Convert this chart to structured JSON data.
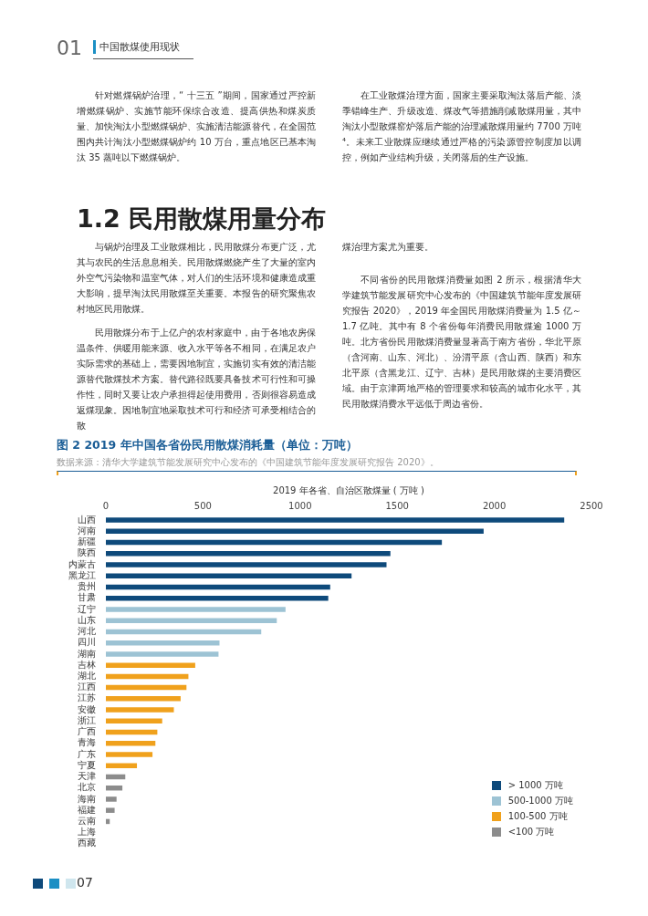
{
  "chart_data": {
    "type": "bar",
    "orientation": "horizontal",
    "title": "图 2  2019 年中国各省份民用散煤消耗量（单位：万吨）",
    "subtitle": "数据来源：清华大学建筑节能发展研究中心发布的《中国建筑节能年度发展研究报告 2020》。",
    "xlabel": "2019 年各省、自治区散煤量 ( 万吨 )",
    "categories": [
      "山西",
      "河南",
      "新疆",
      "陕西",
      "内蒙古",
      "黑龙江",
      "贵州",
      "甘肃",
      "辽宁",
      "山东",
      "河北",
      "四川",
      "湖南",
      "吉林",
      "湖北",
      "江西",
      "江苏",
      "安徽",
      "浙江",
      "广西",
      "青海",
      "广东",
      "宁夏",
      "天津",
      "北京",
      "海南",
      "福建",
      "云南",
      "上海",
      "西藏"
    ],
    "series": [
      {
        "name": "> 1000 万吨",
        "color": "#0e4a7b",
        "values": [
          2360,
          1945,
          1730,
          1465,
          1445,
          1265,
          1155,
          1145,
          null,
          null,
          null,
          null,
          null,
          null,
          null,
          null,
          null,
          null,
          null,
          null,
          null,
          null,
          null,
          null,
          null,
          null,
          null,
          null,
          null,
          null
        ]
      },
      {
        "name": "500-1000 万吨",
        "color": "#9dc3d4",
        "values": [
          null,
          null,
          null,
          null,
          null,
          null,
          null,
          null,
          925,
          880,
          800,
          585,
          580,
          null,
          null,
          null,
          null,
          null,
          null,
          null,
          null,
          null,
          null,
          null,
          null,
          null,
          null,
          null,
          null,
          null
        ]
      },
      {
        "name": "100-500 万吨",
        "color": "#f0a11c",
        "values": [
          null,
          null,
          null,
          null,
          null,
          null,
          null,
          null,
          null,
          null,
          null,
          null,
          null,
          460,
          425,
          415,
          385,
          350,
          290,
          265,
          255,
          240,
          160,
          null,
          null,
          null,
          null,
          null,
          null,
          null
        ]
      },
      {
        "name": "<100 万吨",
        "color": "#8c8c8c",
        "values": [
          null,
          null,
          null,
          null,
          null,
          null,
          null,
          null,
          null,
          null,
          null,
          null,
          null,
          null,
          null,
          null,
          null,
          null,
          null,
          null,
          null,
          null,
          null,
          100,
          85,
          55,
          45,
          20,
          0,
          0
        ]
      }
    ],
    "xlim": [
      0,
      2500
    ],
    "xticks": [
      0,
      500,
      1000,
      1500,
      2000,
      2500
    ],
    "grid": false,
    "legend": "bottom right",
    "annotations": [
      "01",
      "中国散煤使用现状",
      "针对燃煤锅炉治理，“ 十三五 ”期间，国家通过严控新增燃煤锅炉、实施节能环保综合改造、提高供热和煤炭质量、加快淘汰小型燃煤锅炉、实施清洁能源替代，在全国范围内共计淘汰小型燃煤锅炉约 10 万台，重点地区已基本淘汰 35 蒸吨以下燃煤锅炉。",
      "在工业散煤治理方面，国家主要采取淘汰落后产能、淡季错峰生产、升级改造、煤改气等措施削减散煤用量，其中淘汰小型散煤窑炉落后产能的治理减散煤用量约 7700 万吨⁴。未来工业散煤应继续通过严格的污染源管控制度加以调控，例如产业结构升级，关闭落后的生产设施。",
      "1.2 民用散煤用量分布",
      "与锅炉治理及工业散煤相比，民用散煤分布更广泛，尤其与农民的生活息息相关。民用散煤燃烧产生了大量的室内外空气污染物和温室气体，对人们的生活环境和健康造成重大影响，提早淘汰民用散煤至关重要。本报告的研究聚焦农村地区民用散煤。",
      "民用散煤分布于上亿户的农村家庭中，由于各地农房保温条件、供暖用能来源、收入水平等各不相同，在满足农户实际需求的基础上，需要因地制宜，实施切实有效的清洁能源替代散煤技术方案。替代路径既要具备技术可行性和可操作性，同时又要让农户承担得起使用费用，否则很容易造成返煤现象。因地制宜地采取技术可行和经济可承受相结合的散",
      "煤治理方案尤为重要。",
      "不同省份的民用散煤消费量如图 2 所示，根据清华大学建筑节能发展研究中心发布的《中国建筑节能年度发展研究报告 2020》，2019 年全国民用散煤消费量为 1.5 亿～ 1.7 亿吨。其中有 8 个省份每年消费民用散煤逾 1000 万吨。北方省份民用散煤消费量显著高于南方省份，华北平原（含河南、山东、河北）、汾渭平原（含山西、陕西）和东北平原（含黑龙江、辽宁、吉林）是民用散煤的主要消费区域。由于京津两地严格的管理要求和较高的城市化水平，其民用散煤消费水平远低于周边省份。",
      "07"
    ]
  }
}
